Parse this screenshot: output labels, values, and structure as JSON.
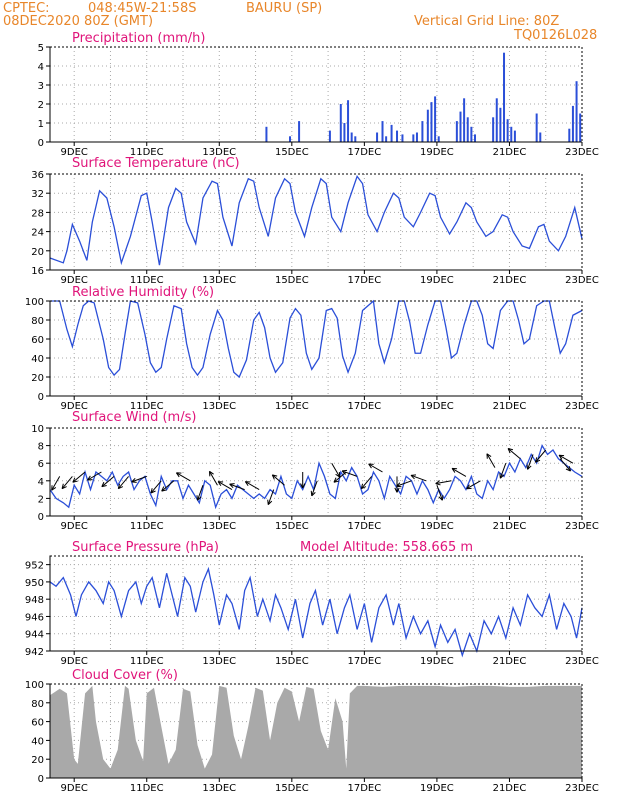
{
  "header": {
    "source": "CPTEC:",
    "coords": "048:45W-21:58S",
    "station": "BAURU (SP)",
    "run": "08DEC2020 80Z (GMT)",
    "grid_note": "Vertical Grid Line: 80Z",
    "model": "TQ0126L028"
  },
  "colors": {
    "header": "#e8862a",
    "title": "#e0147a",
    "series": "#2b4fd8",
    "cloud": "#a9a9a9"
  },
  "x_axis": {
    "start_day": 8.333,
    "end_day": 23.0,
    "tick_days": [
      9,
      11,
      13,
      15,
      17,
      19,
      21,
      23
    ],
    "tick_labels": [
      "9DEC",
      "11DEC",
      "13DEC",
      "15DEC",
      "17DEC",
      "19DEC",
      "21DEC",
      "23DEC"
    ],
    "grid_days": [
      9,
      10,
      11,
      12,
      13,
      14,
      15,
      16,
      17,
      18,
      19,
      20,
      21,
      22,
      23
    ]
  },
  "chart_data": [
    {
      "id": "precip",
      "type": "bar",
      "title": "Precipitation (mm/h)",
      "ylim": [
        0,
        5
      ],
      "yticks": [
        0,
        1,
        2,
        3,
        4,
        5
      ],
      "x": [
        14.3,
        14.95,
        15.2,
        16.05,
        16.35,
        16.45,
        16.55,
        16.65,
        16.75,
        17.35,
        17.5,
        17.6,
        17.75,
        17.9,
        18.05,
        18.35,
        18.45,
        18.6,
        18.75,
        18.85,
        18.95,
        19.05,
        19.55,
        19.65,
        19.75,
        19.85,
        19.95,
        20.05,
        20.55,
        20.65,
        20.75,
        20.85,
        20.95,
        21.05,
        21.15,
        21.75,
        21.85,
        22.65,
        22.75,
        22.85,
        22.95
      ],
      "values": [
        0.8,
        0.3,
        1.1,
        0.6,
        2.0,
        1.0,
        2.2,
        0.5,
        0.3,
        0.5,
        1.1,
        0.3,
        0.9,
        0.6,
        0.4,
        0.4,
        0.5,
        1.1,
        1.7,
        2.1,
        2.4,
        0.3,
        1.1,
        1.6,
        2.3,
        1.3,
        0.8,
        0.4,
        1.3,
        2.3,
        1.8,
        4.7,
        1.2,
        0.8,
        0.6,
        1.5,
        0.5,
        0.7,
        1.9,
        3.2,
        1.5
      ]
    },
    {
      "id": "temp",
      "type": "line",
      "title": "Surface Temperature (nC)",
      "ylim": [
        16,
        36
      ],
      "yticks": [
        16,
        20,
        24,
        28,
        32,
        36
      ],
      "x": [
        8.333,
        8.7,
        8.8,
        8.95,
        9.15,
        9.35,
        9.5,
        9.7,
        9.9,
        10.1,
        10.3,
        10.55,
        10.85,
        11.0,
        11.15,
        11.35,
        11.6,
        11.8,
        11.95,
        12.1,
        12.35,
        12.55,
        12.8,
        12.95,
        13.1,
        13.35,
        13.55,
        13.8,
        13.95,
        14.1,
        14.35,
        14.55,
        14.8,
        14.95,
        15.1,
        15.35,
        15.55,
        15.8,
        15.95,
        16.1,
        16.35,
        16.55,
        16.8,
        16.95,
        17.1,
        17.35,
        17.55,
        17.8,
        17.95,
        18.1,
        18.35,
        18.55,
        18.8,
        18.95,
        19.1,
        19.35,
        19.55,
        19.8,
        19.95,
        20.1,
        20.35,
        20.55,
        20.8,
        20.95,
        21.1,
        21.35,
        21.55,
        21.8,
        21.95,
        22.1,
        22.35,
        22.55,
        22.8,
        23.0
      ],
      "values": [
        18.5,
        17.5,
        20.0,
        25.5,
        22.0,
        18.0,
        26.0,
        32.5,
        31.0,
        25.0,
        17.5,
        23.0,
        31.5,
        32.0,
        26.0,
        17.0,
        29.0,
        33.0,
        32.0,
        26.0,
        21.5,
        31.0,
        34.5,
        34.0,
        27.0,
        21.0,
        30.0,
        35.0,
        34.5,
        29.0,
        23.0,
        31.0,
        35.0,
        34.0,
        28.0,
        23.0,
        29.0,
        35.0,
        34.0,
        27.0,
        24.0,
        30.0,
        35.5,
        34.0,
        27.5,
        24.0,
        28.0,
        32.0,
        31.0,
        27.0,
        25.0,
        28.0,
        32.0,
        31.5,
        27.0,
        23.5,
        26.0,
        30.0,
        29.0,
        26.0,
        23.0,
        24.0,
        27.5,
        27.0,
        24.0,
        21.0,
        20.5,
        25.0,
        25.5,
        22.0,
        20.0,
        23.0,
        29.0,
        22.5
      ]
    },
    {
      "id": "rh",
      "type": "line",
      "title": "Relative Humidity (%)",
      "ylim": [
        0,
        100
      ],
      "yticks": [
        0,
        20,
        40,
        60,
        80,
        100
      ],
      "x": [
        8.333,
        8.6,
        8.8,
        8.95,
        9.1,
        9.25,
        9.4,
        9.55,
        9.8,
        9.95,
        10.1,
        10.25,
        10.4,
        10.55,
        10.75,
        10.95,
        11.1,
        11.25,
        11.4,
        11.55,
        11.75,
        11.95,
        12.1,
        12.25,
        12.4,
        12.55,
        12.75,
        12.95,
        13.1,
        13.25,
        13.4,
        13.55,
        13.75,
        13.95,
        14.1,
        14.25,
        14.4,
        14.55,
        14.75,
        14.95,
        15.1,
        15.25,
        15.4,
        15.55,
        15.75,
        15.95,
        16.1,
        16.25,
        16.4,
        16.55,
        16.75,
        16.95,
        17.1,
        17.25,
        17.4,
        17.55,
        17.75,
        17.95,
        18.1,
        18.25,
        18.4,
        18.55,
        18.75,
        18.95,
        19.1,
        19.25,
        19.4,
        19.55,
        19.75,
        19.95,
        20.1,
        20.25,
        20.4,
        20.55,
        20.75,
        20.95,
        21.1,
        21.25,
        21.4,
        21.55,
        21.75,
        21.95,
        22.1,
        22.25,
        22.4,
        22.55,
        22.75,
        23.0
      ],
      "values": [
        100,
        100,
        70,
        52,
        75,
        95,
        100,
        98,
        60,
        30,
        22,
        28,
        65,
        100,
        98,
        65,
        35,
        25,
        30,
        60,
        95,
        92,
        55,
        30,
        22,
        30,
        65,
        90,
        80,
        50,
        25,
        20,
        38,
        80,
        88,
        72,
        40,
        25,
        35,
        82,
        92,
        85,
        45,
        28,
        40,
        90,
        92,
        82,
        42,
        25,
        45,
        90,
        95,
        100,
        55,
        35,
        60,
        100,
        100,
        78,
        45,
        45,
        75,
        100,
        100,
        72,
        40,
        45,
        75,
        100,
        100,
        85,
        55,
        50,
        90,
        100,
        100,
        80,
        55,
        60,
        95,
        100,
        100,
        72,
        45,
        55,
        85,
        90
      ]
    },
    {
      "id": "wind",
      "type": "line",
      "title": "Surface Wind (m/s)",
      "ylim": [
        0,
        10
      ],
      "yticks": [
        0,
        2,
        4,
        6,
        8,
        10
      ],
      "x": [
        8.333,
        8.5,
        8.7,
        8.85,
        9.0,
        9.15,
        9.3,
        9.45,
        9.6,
        9.75,
        9.9,
        10.05,
        10.2,
        10.35,
        10.5,
        10.65,
        10.8,
        10.95,
        11.1,
        11.25,
        11.4,
        11.55,
        11.7,
        11.85,
        12.0,
        12.15,
        12.3,
        12.45,
        12.6,
        12.75,
        12.9,
        13.05,
        13.2,
        13.35,
        13.5,
        13.65,
        13.8,
        13.95,
        14.1,
        14.25,
        14.4,
        14.55,
        14.7,
        14.85,
        15.0,
        15.15,
        15.3,
        15.45,
        15.6,
        15.75,
        15.9,
        16.05,
        16.2,
        16.35,
        16.5,
        16.65,
        16.8,
        16.95,
        17.1,
        17.25,
        17.4,
        17.55,
        17.7,
        17.85,
        18.0,
        18.15,
        18.3,
        18.45,
        18.6,
        18.75,
        18.9,
        19.05,
        19.2,
        19.35,
        19.5,
        19.65,
        19.8,
        19.95,
        20.1,
        20.25,
        20.4,
        20.55,
        20.7,
        20.85,
        21.0,
        21.15,
        21.3,
        21.45,
        21.6,
        21.75,
        21.9,
        22.05,
        22.2,
        22.35,
        22.5,
        22.65,
        22.8,
        23.0
      ],
      "values": [
        3.0,
        2.0,
        1.5,
        1.0,
        3.5,
        2.5,
        5.0,
        3.0,
        5.0,
        4.5,
        4.0,
        5.0,
        3.5,
        4.5,
        5.0,
        3.0,
        4.0,
        4.5,
        2.5,
        1.2,
        4.5,
        3.0,
        4.0,
        4.0,
        2.0,
        3.5,
        2.5,
        1.5,
        4.0,
        3.5,
        1.0,
        2.5,
        3.0,
        2.0,
        3.5,
        3.0,
        2.5,
        2.0,
        2.5,
        2.0,
        3.0,
        2.5,
        4.5,
        2.5,
        2.0,
        4.0,
        3.0,
        4.5,
        3.0,
        6.0,
        4.5,
        2.5,
        2.0,
        5.0,
        4.0,
        5.5,
        4.5,
        2.5,
        3.0,
        5.0,
        4.0,
        2.0,
        4.5,
        3.5,
        2.5,
        4.5,
        4.0,
        2.5,
        4.0,
        3.0,
        1.5,
        3.0,
        2.0,
        3.0,
        4.5,
        4.0,
        3.0,
        4.5,
        2.5,
        2.0,
        4.0,
        3.0,
        5.0,
        4.5,
        6.0,
        5.0,
        6.5,
        5.5,
        7.0,
        6.0,
        8.0,
        7.0,
        7.5,
        6.5,
        6.0,
        5.5,
        5.0,
        4.5
      ],
      "arrows_x": [
        8.6,
        8.95,
        9.3,
        9.75,
        10.1,
        10.5,
        11.0,
        11.4,
        11.75,
        12.2,
        12.55,
        12.95,
        13.35,
        13.7,
        14.1,
        14.5,
        14.8,
        15.3,
        15.7,
        16.1,
        16.5,
        16.8,
        17.2,
        17.5,
        17.9,
        18.3,
        18.7,
        19.0,
        19.4,
        19.8,
        20.2,
        20.6,
        20.9,
        21.3,
        21.65,
        22.0,
        22.4,
        22.75
      ],
      "arrows_dir": [
        210,
        220,
        230,
        240,
        230,
        220,
        250,
        220,
        230,
        300,
        200,
        330,
        300,
        290,
        300,
        200,
        310,
        180,
        200,
        150,
        230,
        290,
        220,
        300,
        180,
        250,
        290,
        160,
        260,
        300,
        240,
        330,
        200,
        310,
        200,
        220,
        140,
        300
      ],
      "arrows_spd": [
        4.5,
        4.5,
        5.0,
        5.0,
        4.5,
        4.5,
        4.5,
        4.0,
        4.0,
        4.0,
        3.5,
        3.5,
        3.0,
        3.0,
        3.0,
        3.0,
        3.5,
        5.0,
        4.0,
        6.0,
        5.0,
        4.5,
        4.5,
        5.0,
        4.5,
        4.0,
        4.0,
        3.5,
        4.0,
        4.5,
        4.0,
        5.5,
        6.0,
        6.5,
        7.0,
        7.5,
        6.5,
        6.0
      ]
    },
    {
      "id": "pressure",
      "type": "line",
      "title": "Surface Pressure (hPa)",
      "annotation": "Model Altitude: 558.665 m",
      "ylim": [
        942,
        953
      ],
      "yticks": [
        942,
        944,
        946,
        948,
        950,
        952
      ],
      "x": [
        8.333,
        8.5,
        8.7,
        8.9,
        9.05,
        9.2,
        9.4,
        9.6,
        9.8,
        9.95,
        10.1,
        10.3,
        10.5,
        10.7,
        10.85,
        11.0,
        11.15,
        11.35,
        11.55,
        11.7,
        11.85,
        12.05,
        12.2,
        12.35,
        12.55,
        12.7,
        12.85,
        13.0,
        13.2,
        13.35,
        13.55,
        13.7,
        13.85,
        14.05,
        14.2,
        14.4,
        14.55,
        14.7,
        14.9,
        15.1,
        15.3,
        15.5,
        15.65,
        15.85,
        16.05,
        16.25,
        16.45,
        16.6,
        16.8,
        17.0,
        17.2,
        17.4,
        17.6,
        17.8,
        17.95,
        18.15,
        18.35,
        18.55,
        18.75,
        18.95,
        19.1,
        19.3,
        19.5,
        19.7,
        19.9,
        20.1,
        20.3,
        20.5,
        20.7,
        20.9,
        21.1,
        21.3,
        21.5,
        21.7,
        21.9,
        22.1,
        22.3,
        22.5,
        22.7,
        22.85,
        23.0
      ],
      "values": [
        950.0,
        949.5,
        950.5,
        948.5,
        946.0,
        948.5,
        950.0,
        949.0,
        947.5,
        950.0,
        949.0,
        946.0,
        949.0,
        950.0,
        947.5,
        949.5,
        950.5,
        947.0,
        951.0,
        948.5,
        946.0,
        950.5,
        949.5,
        946.5,
        950.0,
        951.5,
        948.5,
        945.0,
        948.5,
        947.5,
        944.5,
        949.0,
        950.5,
        946.0,
        948.0,
        945.5,
        948.5,
        947.0,
        944.5,
        948.0,
        943.5,
        947.5,
        949.0,
        945.0,
        948.0,
        944.0,
        947.0,
        948.5,
        944.5,
        947.5,
        943.0,
        947.0,
        948.5,
        945.0,
        947.5,
        943.5,
        946.0,
        944.0,
        945.5,
        942.5,
        945.0,
        943.0,
        944.5,
        941.5,
        944.0,
        942.0,
        945.5,
        944.0,
        946.0,
        943.5,
        947.0,
        945.0,
        948.5,
        947.0,
        946.0,
        948.5,
        944.5,
        947.5,
        946.0,
        943.5,
        947.0
      ]
    },
    {
      "id": "cloud",
      "type": "area",
      "title": "Cloud Cover (%)",
      "ylim": [
        0,
        100
      ],
      "yticks": [
        0,
        20,
        40,
        60,
        80,
        100
      ],
      "x": [
        8.333,
        8.6,
        8.8,
        9.0,
        9.1,
        9.3,
        9.5,
        9.6,
        9.8,
        10.0,
        10.2,
        10.4,
        10.5,
        10.7,
        10.9,
        11.0,
        11.2,
        11.4,
        11.6,
        11.8,
        12.0,
        12.2,
        12.4,
        12.6,
        12.8,
        13.0,
        13.2,
        13.4,
        13.6,
        13.8,
        14.0,
        14.2,
        14.4,
        14.6,
        14.8,
        15.0,
        15.2,
        15.4,
        15.6,
        15.8,
        16.0,
        16.2,
        16.4,
        16.5,
        16.6,
        16.8,
        17.0,
        17.5,
        18.0,
        18.5,
        19.0,
        19.5,
        20.0,
        20.5,
        21.0,
        21.5,
        22.0,
        22.5,
        23.0
      ],
      "values": [
        88,
        95,
        90,
        20,
        15,
        90,
        98,
        60,
        20,
        10,
        30,
        98,
        95,
        40,
        18,
        90,
        96,
        55,
        15,
        30,
        95,
        92,
        35,
        10,
        25,
        98,
        96,
        45,
        20,
        55,
        96,
        93,
        40,
        80,
        96,
        92,
        60,
        97,
        95,
        50,
        30,
        85,
        60,
        10,
        90,
        98,
        98,
        97,
        98,
        98,
        98,
        97,
        98,
        98,
        97,
        97,
        98,
        98,
        98
      ]
    }
  ]
}
